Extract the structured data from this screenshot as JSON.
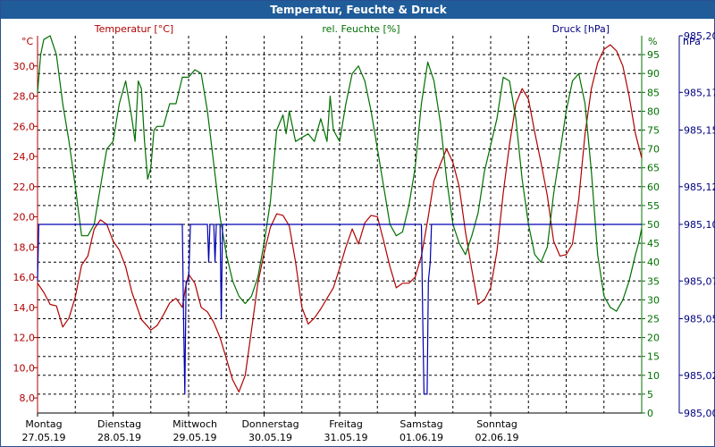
{
  "window": {
    "title": "Temperatur, Feuchte & Druck"
  },
  "chart_data": {
    "type": "line",
    "title": "Temperatur, Feuchte & Druck",
    "header_labels": {
      "temp": "Temperatur [°C]",
      "hum": "rel. Feuchte [%]",
      "press": "Druck [hPa]"
    },
    "axes": {
      "left": {
        "unit": "°C",
        "min": 7,
        "max": 32,
        "ticks": [
          "8,0",
          "10,0",
          "12,0",
          "14,0",
          "16,0",
          "18,0",
          "20,0",
          "22,0",
          "24,0",
          "26,0",
          "28,0",
          "30,0"
        ],
        "color": "#b00000"
      },
      "mid": {
        "unit": "%",
        "min": 0,
        "max": 100,
        "ticks": [
          "0",
          "5",
          "10",
          "15",
          "20",
          "25",
          "30",
          "35",
          "40",
          "45",
          "50",
          "55",
          "60",
          "65",
          "70",
          "75",
          "80",
          "85",
          "90",
          "95"
        ],
        "color": "#007000"
      },
      "right": {
        "unit": "hPa",
        "min": 985.0,
        "max": 985.2,
        "ticks": [
          "985,00",
          "985,02",
          "985,05",
          "985,07",
          "985,10",
          "985,12",
          "985,15",
          "985,17",
          "985,20"
        ],
        "color": "#000080"
      }
    },
    "x_labels": [
      {
        "day": "Montag",
        "date": "27.05.19"
      },
      {
        "day": "Dienstag",
        "date": "28.05.19"
      },
      {
        "day": "Mittwoch",
        "date": "29.05.19"
      },
      {
        "day": "Donnerstag",
        "date": "30.05.19"
      },
      {
        "day": "Freitag",
        "date": "31.05.19"
      },
      {
        "day": "Samstag",
        "date": "01.06.19"
      },
      {
        "day": "Sonntag",
        "date": "02.06.19"
      }
    ],
    "x_unit": "hours since Montag 27.05.19 00:00",
    "grid": true,
    "series": [
      {
        "name": "Temperatur [°C]",
        "axis": "left",
        "color": "#b00000",
        "points": [
          [
            0,
            15.6
          ],
          [
            2,
            15
          ],
          [
            4,
            14.2
          ],
          [
            6,
            14.1
          ],
          [
            8,
            12.7
          ],
          [
            10,
            13.3
          ],
          [
            12,
            14.7
          ],
          [
            14,
            16.8
          ],
          [
            16,
            17.4
          ],
          [
            18,
            19.2
          ],
          [
            20,
            19.8
          ],
          [
            22,
            19.5
          ],
          [
            24,
            18.4
          ],
          [
            26,
            17.8
          ],
          [
            28,
            16.7
          ],
          [
            30,
            15
          ],
          [
            33,
            13.2
          ],
          [
            36,
            12.5
          ],
          [
            38,
            12.8
          ],
          [
            40,
            13.5
          ],
          [
            42,
            14.3
          ],
          [
            44,
            14.6
          ],
          [
            46,
            14
          ],
          [
            47,
            15.3
          ],
          [
            48,
            16.2
          ],
          [
            50,
            15.6
          ],
          [
            52,
            14
          ],
          [
            54,
            13.7
          ],
          [
            56,
            13
          ],
          [
            58,
            12
          ],
          [
            60,
            10.6
          ],
          [
            62,
            9.2
          ],
          [
            64,
            8.4
          ],
          [
            66,
            9.5
          ],
          [
            68,
            12.5
          ],
          [
            70,
            15.6
          ],
          [
            72,
            17.6
          ],
          [
            74,
            19.3
          ],
          [
            76,
            20.2
          ],
          [
            78,
            20.1
          ],
          [
            80,
            19.4
          ],
          [
            82,
            17
          ],
          [
            84,
            14
          ],
          [
            86,
            12.9
          ],
          [
            88,
            13.3
          ],
          [
            90,
            13.9
          ],
          [
            92,
            14.6
          ],
          [
            94,
            15.3
          ],
          [
            96,
            16.6
          ],
          [
            98,
            18
          ],
          [
            100,
            19.2
          ],
          [
            102,
            18.2
          ],
          [
            104,
            19.6
          ],
          [
            106,
            20.1
          ],
          [
            108,
            20
          ],
          [
            110,
            18.4
          ],
          [
            112,
            16.7
          ],
          [
            114,
            15.3
          ],
          [
            116,
            15.6
          ],
          [
            118,
            15.6
          ],
          [
            120,
            16
          ],
          [
            122,
            17.4
          ],
          [
            124,
            19.8
          ],
          [
            126,
            22.4
          ],
          [
            128,
            23.5
          ],
          [
            130,
            24.5
          ],
          [
            132,
            23.6
          ],
          [
            134,
            22
          ],
          [
            136,
            19
          ],
          [
            138,
            16.5
          ],
          [
            140,
            14.2
          ],
          [
            142,
            14.5
          ],
          [
            144,
            15.3
          ],
          [
            146,
            17.7
          ],
          [
            148,
            21.6
          ],
          [
            150,
            24.8
          ],
          [
            152,
            27.5
          ],
          [
            154,
            28.5
          ],
          [
            156,
            27.8
          ],
          [
            158,
            25.6
          ],
          [
            160,
            23.6
          ],
          [
            162,
            21.4
          ],
          [
            164,
            18.4
          ],
          [
            166,
            17.4
          ],
          [
            168,
            17.5
          ],
          [
            170,
            18.2
          ],
          [
            172,
            21.2
          ],
          [
            174,
            25.5
          ],
          [
            176,
            28.5
          ],
          [
            178,
            30.2
          ],
          [
            180,
            31.1
          ],
          [
            182,
            31.4
          ],
          [
            184,
            31
          ],
          [
            186,
            30
          ],
          [
            188,
            28
          ],
          [
            190,
            25.5
          ],
          [
            192,
            23.9
          ]
        ]
      },
      {
        "name": "rel. Feuchte [%]",
        "axis": "mid",
        "color": "#007000",
        "points": [
          [
            0,
            85
          ],
          [
            1,
            95
          ],
          [
            2,
            99
          ],
          [
            4,
            100
          ],
          [
            6,
            95
          ],
          [
            8,
            82
          ],
          [
            10,
            72
          ],
          [
            12,
            60
          ],
          [
            14,
            47
          ],
          [
            16,
            47
          ],
          [
            18,
            50
          ],
          [
            20,
            60
          ],
          [
            22,
            70
          ],
          [
            24,
            72
          ],
          [
            26,
            82
          ],
          [
            28,
            88
          ],
          [
            30,
            78
          ],
          [
            31,
            72
          ],
          [
            32,
            88
          ],
          [
            33,
            86
          ],
          [
            34,
            72
          ],
          [
            35,
            62
          ],
          [
            36,
            65
          ],
          [
            37,
            75
          ],
          [
            38,
            76
          ],
          [
            40,
            76
          ],
          [
            42,
            82
          ],
          [
            44,
            82
          ],
          [
            46,
            89
          ],
          [
            48,
            89
          ],
          [
            50,
            91
          ],
          [
            52,
            90
          ],
          [
            54,
            80
          ],
          [
            56,
            66
          ],
          [
            58,
            52
          ],
          [
            60,
            42
          ],
          [
            62,
            35
          ],
          [
            64,
            31
          ],
          [
            66,
            29
          ],
          [
            68,
            31
          ],
          [
            70,
            36
          ],
          [
            72,
            45
          ],
          [
            74,
            56
          ],
          [
            76,
            75
          ],
          [
            78,
            79
          ],
          [
            79,
            74
          ],
          [
            80,
            80
          ],
          [
            82,
            72
          ],
          [
            84,
            73
          ],
          [
            86,
            74
          ],
          [
            88,
            72
          ],
          [
            90,
            78
          ],
          [
            92,
            72
          ],
          [
            93,
            84
          ],
          [
            94,
            75
          ],
          [
            96,
            72
          ],
          [
            98,
            82
          ],
          [
            100,
            90
          ],
          [
            102,
            92
          ],
          [
            104,
            88
          ],
          [
            106,
            80
          ],
          [
            108,
            70
          ],
          [
            110,
            60
          ],
          [
            112,
            50
          ],
          [
            114,
            47
          ],
          [
            116,
            48
          ],
          [
            118,
            55
          ],
          [
            120,
            65
          ],
          [
            122,
            82
          ],
          [
            124,
            93
          ],
          [
            126,
            88
          ],
          [
            128,
            77
          ],
          [
            130,
            62
          ],
          [
            132,
            50
          ],
          [
            134,
            45
          ],
          [
            136,
            42
          ],
          [
            138,
            47
          ],
          [
            140,
            53
          ],
          [
            142,
            64
          ],
          [
            144,
            71
          ],
          [
            146,
            78
          ],
          [
            148,
            89
          ],
          [
            150,
            88
          ],
          [
            152,
            78
          ],
          [
            154,
            62
          ],
          [
            156,
            50
          ],
          [
            158,
            42
          ],
          [
            160,
            40
          ],
          [
            162,
            44
          ],
          [
            164,
            58
          ],
          [
            166,
            69
          ],
          [
            168,
            80
          ],
          [
            170,
            88
          ],
          [
            172,
            90
          ],
          [
            174,
            82
          ],
          [
            176,
            64
          ],
          [
            178,
            42
          ],
          [
            180,
            31
          ],
          [
            182,
            28
          ],
          [
            184,
            27
          ],
          [
            186,
            30
          ],
          [
            188,
            35
          ],
          [
            190,
            42
          ],
          [
            191,
            45
          ],
          [
            192,
            49
          ]
        ]
      },
      {
        "name": "Druck [hPa]",
        "axis": "right",
        "color": "#0000b0",
        "points": [
          [
            0,
            985.07
          ],
          [
            0.4,
            985.1
          ],
          [
            1,
            985.1
          ],
          [
            46,
            985.1
          ],
          [
            46.4,
            985.05
          ],
          [
            46.8,
            985.01
          ],
          [
            47.2,
            985.07
          ],
          [
            48,
            985.07
          ],
          [
            48.6,
            985.1
          ],
          [
            54,
            985.1
          ],
          [
            54.4,
            985.08
          ],
          [
            54.8,
            985.1
          ],
          [
            56,
            985.1
          ],
          [
            56.4,
            985.08
          ],
          [
            56.8,
            985.1
          ],
          [
            58,
            985.1
          ],
          [
            58.4,
            985.05
          ],
          [
            58.8,
            985.1
          ],
          [
            122,
            985.1
          ],
          [
            122.4,
            985.05
          ],
          [
            122.8,
            985.01
          ],
          [
            123.8,
            985.01
          ],
          [
            124.2,
            985.07
          ],
          [
            124.8,
            985.08
          ],
          [
            125.2,
            985.1
          ],
          [
            192,
            985.1
          ]
        ]
      }
    ]
  }
}
